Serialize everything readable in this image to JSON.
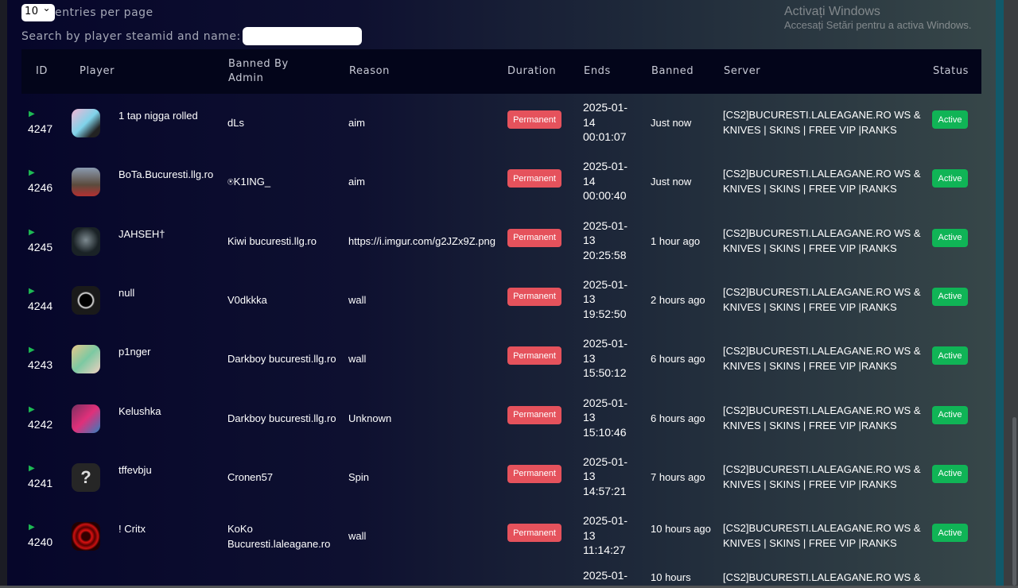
{
  "controls": {
    "entries_value": "10",
    "entries_label": "entries per page",
    "search_label": "Search by player steamid and name:",
    "search_value": ""
  },
  "columns": [
    "ID",
    "Player",
    "Banned By Admin",
    "Reason",
    "Duration",
    "Ends",
    "Banned",
    "Server",
    "Status"
  ],
  "rows": [
    {
      "id": "4247",
      "player": "1 tap nigga rolled",
      "admin": "dLs",
      "reason": "aim",
      "duration": "Permanent",
      "ends": "2025-01-14 00:01:07",
      "banned": "Just now",
      "server": "[CS2]BUCURESTI.LALEAGANE.RO WS & KNIVES | SKINS | FREE VIP |RANKS",
      "status": "Active"
    },
    {
      "id": "4246",
      "player": "BoTa.Bucuresti.llg.ro",
      "admin": "⍟K1ING_",
      "reason": "aim",
      "duration": "Permanent",
      "ends": "2025-01-14 00:00:40",
      "banned": "Just now",
      "server": "[CS2]BUCURESTI.LALEAGANE.RO WS & KNIVES | SKINS | FREE VIP |RANKS",
      "status": "Active"
    },
    {
      "id": "4245",
      "player": "JAHSEH†",
      "admin": "Kiwi bucuresti.llg.ro",
      "reason": "https://i.imgur.com/g2JZx9Z.png",
      "duration": "Permanent",
      "ends": "2025-01-13 20:25:58",
      "banned": "1 hour ago",
      "server": "[CS2]BUCURESTI.LALEAGANE.RO WS & KNIVES | SKINS | FREE VIP |RANKS",
      "status": "Active"
    },
    {
      "id": "4244",
      "player": "null",
      "admin": "V0dkkka",
      "reason": "wall",
      "duration": "Permanent",
      "ends": "2025-01-13 19:52:50",
      "banned": "2 hours ago",
      "server": "[CS2]BUCURESTI.LALEAGANE.RO WS & KNIVES | SKINS | FREE VIP |RANKS",
      "status": "Active"
    },
    {
      "id": "4243",
      "player": "p1nger",
      "admin": "Darkboy bucuresti.llg.ro",
      "reason": "wall",
      "duration": "Permanent",
      "ends": "2025-01-13 15:50:12",
      "banned": "6 hours ago",
      "server": "[CS2]BUCURESTI.LALEAGANE.RO WS & KNIVES | SKINS | FREE VIP |RANKS",
      "status": "Active"
    },
    {
      "id": "4242",
      "player": "Kelushka",
      "admin": "Darkboy bucuresti.llg.ro",
      "reason": "Unknown",
      "duration": "Permanent",
      "ends": "2025-01-13 15:10:46",
      "banned": "6 hours ago",
      "server": "[CS2]BUCURESTI.LALEAGANE.RO WS & KNIVES | SKINS | FREE VIP |RANKS",
      "status": "Active"
    },
    {
      "id": "4241",
      "player": "tffevbju",
      "admin": "Cronen57",
      "reason": "Spin",
      "duration": "Permanent",
      "ends": "2025-01-13 14:57:21",
      "banned": "7 hours ago",
      "server": "[CS2]BUCURESTI.LALEAGANE.RO WS & KNIVES | SKINS | FREE VIP |RANKS",
      "status": "Active"
    },
    {
      "id": "4240",
      "player": "! Critx",
      "admin": "KoKo Bucuresti.laleagane.ro",
      "reason": "wall",
      "duration": "Permanent",
      "ends": "2025-01-13 11:14:27",
      "banned": "10 hours ago",
      "server": "[CS2]BUCURESTI.LALEAGANE.RO WS & KNIVES | SKINS | FREE VIP |RANKS",
      "status": "Active"
    },
    {
      "id": "",
      "player": "",
      "admin": "",
      "reason": "",
      "duration": "",
      "ends": "2025-01-",
      "banned": "10 hours",
      "server": "[CS2]BUCURESTI.LALEAGANE.RO WS &",
      "status": ""
    }
  ],
  "watermark": {
    "title": "Activați Windows",
    "subtitle": "Accesați Setări pentru a activa Windows."
  },
  "colors": {
    "permanent": "#e5525c",
    "active": "#10b456",
    "play": "#1db954"
  }
}
